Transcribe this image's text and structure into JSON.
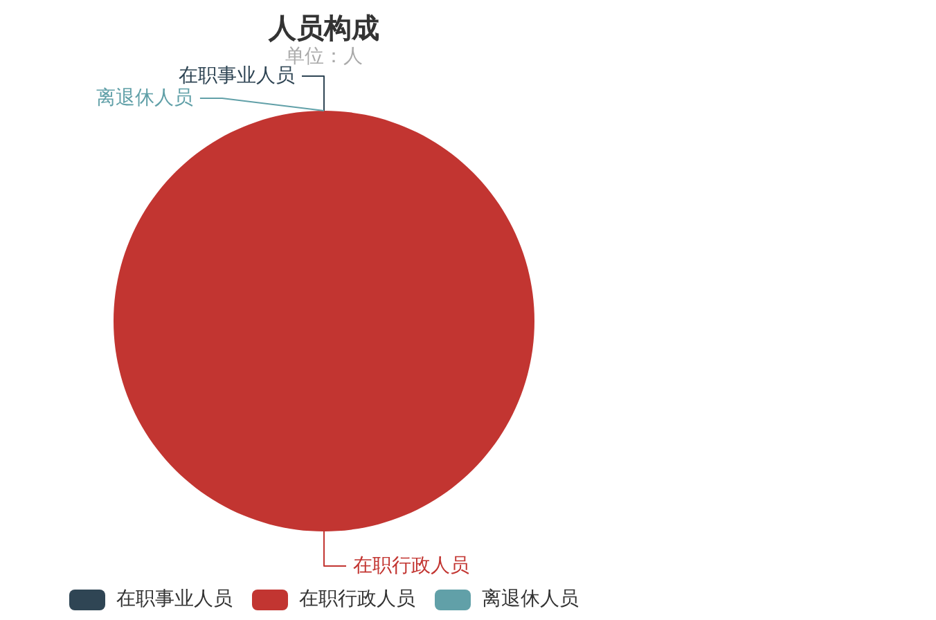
{
  "chart_data": {
    "type": "pie",
    "title": "人员构成",
    "subtitle": "单位：人",
    "categories": [
      "在职事业人员",
      "在职行政人员",
      "离退休人员"
    ],
    "values": [
      0,
      100,
      0
    ],
    "colors": [
      "#2f4554",
      "#c23531",
      "#61a0a8"
    ],
    "legend": "bottom"
  }
}
